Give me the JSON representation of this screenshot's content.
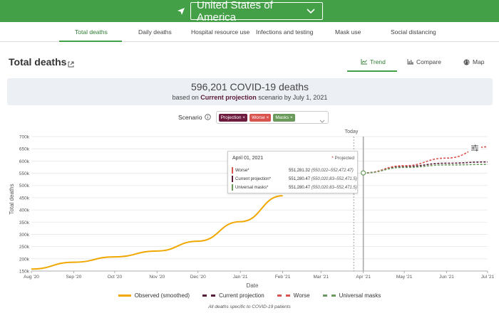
{
  "location": {
    "value": "United States of America"
  },
  "nav": {
    "tabs": [
      {
        "label": "Total deaths"
      },
      {
        "label": "Daily deaths"
      },
      {
        "label": "Hospital resource use"
      },
      {
        "label": "Infections and testing"
      },
      {
        "label": "Mask use"
      },
      {
        "label": "Social distancing"
      }
    ]
  },
  "page": {
    "title": "Total deaths"
  },
  "views": [
    {
      "label": "Trend",
      "icon": "trend-icon"
    },
    {
      "label": "Compare",
      "icon": "compare-icon"
    },
    {
      "label": "Map",
      "icon": "globe-icon"
    }
  ],
  "summary": {
    "main": "596,201 COVID-19 deaths",
    "sub_prefix": "based on",
    "sub_scenario": "Current projection",
    "sub_suffix": "scenario by July 1, 2021"
  },
  "scenario": {
    "label": "Scenario",
    "chips": [
      {
        "label": "Projection ×",
        "color": "#6d1b3f"
      },
      {
        "label": "Worse ×",
        "color": "#d9534f"
      },
      {
        "label": "Masks ×",
        "color": "#6a9a5b"
      }
    ]
  },
  "tooltip": {
    "date": "April 01, 2021",
    "projected_star": "*",
    "projected_label": "Projected",
    "rows": [
      {
        "name": "Worse*",
        "value": "551,281.32",
        "range": "(550,022–552,472.47)",
        "color": "#d9534f"
      },
      {
        "name": "Current projection*",
        "value": "551,280.47",
        "range": "(550,020.83–552,471.5)",
        "color": "#5a1a3a"
      },
      {
        "name": "Universal masks*",
        "value": "551,280.47",
        "range": "(550,020.83–552,471.5)",
        "color": "#6a9a5b"
      }
    ]
  },
  "legend": [
    {
      "label": "Observed (smoothed)",
      "color": "#f0a800",
      "style": "solid"
    },
    {
      "label": "Current projection",
      "color": "#5a1a3a",
      "style": "dashed"
    },
    {
      "label": "Worse",
      "color": "#d9534f",
      "style": "dashed"
    },
    {
      "label": "Universal masks",
      "color": "#6a9a5b",
      "style": "dashed"
    }
  ],
  "footnote": "All deaths specific to COVID-19 patients",
  "chart_data": {
    "type": "line",
    "ylabel": "Total deaths",
    "xlabel": "Date",
    "today_label": "Today",
    "ylim": [
      150000,
      700000
    ],
    "xlim": [
      "2020-08-01",
      "2021-07-01"
    ],
    "y_ticks": [
      150000,
      200000,
      250000,
      300000,
      350000,
      400000,
      450000,
      500000,
      550000,
      600000,
      650000,
      700000
    ],
    "y_tick_labels": [
      "150k",
      "200k",
      "250k",
      "300k",
      "350k",
      "400k",
      "450k",
      "500k",
      "550k",
      "600k",
      "650k",
      "700k"
    ],
    "x_ticks": [
      "2020-08-01",
      "2020-09-01",
      "2020-10-01",
      "2020-11-01",
      "2020-12-01",
      "2021-01-01",
      "2021-02-01",
      "2021-03-01",
      "2021-04-01",
      "2021-05-01",
      "2021-06-01",
      "2021-07-01"
    ],
    "x_tick_labels": [
      "Aug '20",
      "Sep '20",
      "Oct '20",
      "Nov '20",
      "Dec '20",
      "Jan '21",
      "Feb '21",
      "Mar '21",
      "Apr '21",
      "May '21",
      "Jun '21",
      "Jul '21"
    ],
    "today": "2021-03-25",
    "hover_date": "2021-04-01",
    "series": [
      {
        "name": "Observed (smoothed)",
        "color": "#f0a800",
        "style": "solid",
        "x": [
          "2020-08-01",
          "2020-09-01",
          "2020-10-01",
          "2020-11-01",
          "2020-12-01",
          "2021-01-01",
          "2021-02-01"
        ],
        "y": [
          158000,
          186000,
          208000,
          232000,
          272000,
          352000,
          458000
        ]
      },
      {
        "name": "Current projection",
        "color": "#5a1a3a",
        "style": "dashed",
        "x": [
          "2021-04-01",
          "2021-05-01",
          "2021-06-01",
          "2021-07-01"
        ],
        "y": [
          551280,
          578000,
          591000,
          596201
        ]
      },
      {
        "name": "Worse",
        "color": "#d9534f",
        "style": "dashed",
        "x": [
          "2021-04-01",
          "2021-05-01",
          "2021-06-01",
          "2021-07-01"
        ],
        "y": [
          551281,
          581000,
          612000,
          658000
        ]
      },
      {
        "name": "Universal masks",
        "color": "#6a9a5b",
        "style": "dashed",
        "x": [
          "2021-04-01",
          "2021-05-01",
          "2021-06-01",
          "2021-07-01"
        ],
        "y": [
          551280,
          574000,
          584000,
          586000
        ]
      }
    ]
  }
}
